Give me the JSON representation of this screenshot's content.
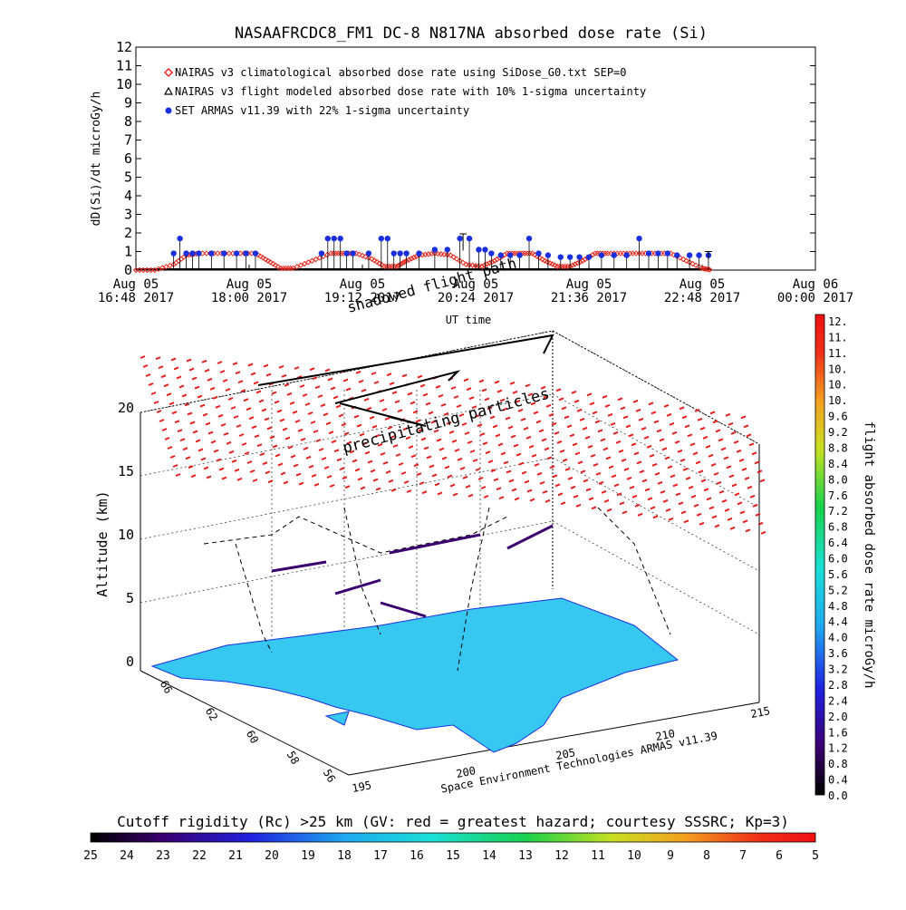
{
  "chart_data": [
    {
      "type": "scatter",
      "title": "NASAAFRCDC8_FM1 DC-8   N817NA absorbed dose rate (Si)",
      "ylabel": "dD(Si)/dt microGy/h",
      "xlabel": "UT time",
      "ylim": [
        0,
        12
      ],
      "yticks": [
        "0",
        "1",
        "2",
        "3",
        "4",
        "5",
        "6",
        "7",
        "8",
        "9",
        "10",
        "11",
        "12"
      ],
      "xticks": [
        {
          "date": "Aug 05",
          "time": "16:48 2017",
          "t": 0
        },
        {
          "date": "Aug 05",
          "time": "18:00 2017",
          "t": 72
        },
        {
          "date": "Aug 05",
          "time": "19:12 2017",
          "t": 144
        },
        {
          "date": "Aug 05",
          "time": "20:24 2017",
          "t": 216
        },
        {
          "date": "Aug 05",
          "time": "21:36 2017",
          "t": 288
        },
        {
          "date": "Aug 05",
          "time": "22:48 2017",
          "t": 360
        },
        {
          "date": "Aug 06",
          "time": "00:00 2017",
          "t": 432
        }
      ],
      "xlim_minutes": [
        0,
        432
      ],
      "legend": [
        {
          "label": "NAIRAS v3 climatological absorbed dose rate using SiDose_G0.txt SEP=0",
          "marker": "diamond",
          "color": "#e8281e"
        },
        {
          "label": "NAIRAS v3 flight modeled absorbed dose rate with 10% 1-sigma uncertainty",
          "marker": "triangle",
          "color": "#000000"
        },
        {
          "label": "SET ARMAS v11.39 with 22% 1-sigma uncertainty",
          "marker": "circle",
          "color": "#1a2fe0"
        }
      ],
      "legend_position": "top-left",
      "climatological": {
        "t": [
          0,
          12,
          24,
          32,
          40,
          52,
          64,
          76,
          84,
          92,
          100,
          112,
          124,
          132,
          140,
          150,
          158,
          166,
          172,
          180,
          190,
          200,
          210,
          220,
          228,
          236,
          244,
          252,
          260,
          268,
          276,
          284,
          292,
          300,
          310,
          320,
          330,
          340,
          350,
          360,
          366
        ],
        "y": [
          0,
          0,
          0.3,
          0.8,
          0.9,
          0.9,
          0.9,
          0.9,
          0.5,
          0.1,
          0.1,
          0.5,
          0.9,
          0.9,
          0.9,
          0.6,
          0.2,
          0.2,
          0.5,
          0.8,
          0.9,
          0.8,
          0.3,
          0.2,
          0.5,
          0.9,
          0.9,
          0.9,
          0.5,
          0.2,
          0.2,
          0.5,
          0.9,
          0.9,
          0.9,
          0.9,
          0.9,
          0.9,
          0.5,
          0.1,
          0
        ]
      },
      "armas": {
        "t": [
          24,
          28,
          32,
          36,
          40,
          48,
          56,
          64,
          70,
          76,
          118,
          122,
          126,
          130,
          134,
          138,
          148,
          156,
          160,
          164,
          168,
          172,
          180,
          190,
          198,
          206,
          212,
          218,
          222,
          226,
          232,
          238,
          244,
          250,
          256,
          262,
          270,
          276,
          282,
          288,
          296,
          304,
          312,
          320,
          326,
          332,
          338,
          344,
          352,
          358,
          364
        ],
        "y": [
          0.9,
          1.7,
          0.9,
          0.9,
          0.9,
          0.9,
          0.9,
          0.9,
          0.9,
          0.9,
          0.9,
          1.7,
          1.7,
          1.7,
          0.9,
          0.9,
          0.9,
          1.7,
          1.7,
          0.9,
          0.9,
          0.9,
          0.9,
          1.1,
          1.1,
          1.7,
          1.7,
          1.1,
          1.1,
          0.9,
          0.8,
          0.8,
          0.8,
          1.7,
          0.9,
          0.8,
          0.7,
          0.7,
          0.7,
          0.7,
          0.8,
          0.8,
          0.8,
          1.7,
          0.9,
          0.9,
          0.9,
          0.8,
          0.8,
          0.8,
          0.8
        ]
      },
      "flight_modeled": {
        "t_start": 0,
        "t_end": 366,
        "y": 0
      }
    },
    {
      "type": "heatmap",
      "description_labels": {
        "ylabel": "Altitude (km)",
        "xlabel": "Space Environment Technologies ARMAS v11.39",
        "zticks": [
          "0",
          "5",
          "10",
          "15",
          "20"
        ],
        "lat_ticks": [
          "66",
          "62",
          "60",
          "58",
          "56"
        ],
        "lon_ticks": [
          "195",
          "200",
          "205",
          "210",
          "215"
        ],
        "annotation_shadowed": "shadowed flight path",
        "annotation_precip": "precipitating particles"
      },
      "colorbar_right": {
        "label": "flight absorbed dose rate microGy/h",
        "ticks": [
          "12.",
          "11.",
          "11.",
          "10.",
          "10.",
          "10.",
          "9.6",
          "9.2",
          "8.8",
          "8.4",
          "8.0",
          "7.6",
          "7.2",
          "6.8",
          "6.4",
          "6.0",
          "5.6",
          "5.2",
          "4.8",
          "4.4",
          "4.0",
          "3.6",
          "3.2",
          "2.8",
          "2.4",
          "2.0",
          "1.6",
          "1.2",
          "0.8",
          "0.4",
          "0.0"
        ]
      },
      "colorbar_bottom": {
        "label": "Cutoff rigidity (Rc) >25 km (GV: red = greatest hazard; courtesy SSSRC; Kp=3)",
        "ticks": [
          "25",
          "24",
          "23",
          "22",
          "21",
          "20",
          "19",
          "18",
          "17",
          "16",
          "15",
          "14",
          "13",
          "12",
          "11",
          "10",
          "9",
          "8",
          "7",
          "6",
          "5"
        ]
      }
    }
  ]
}
